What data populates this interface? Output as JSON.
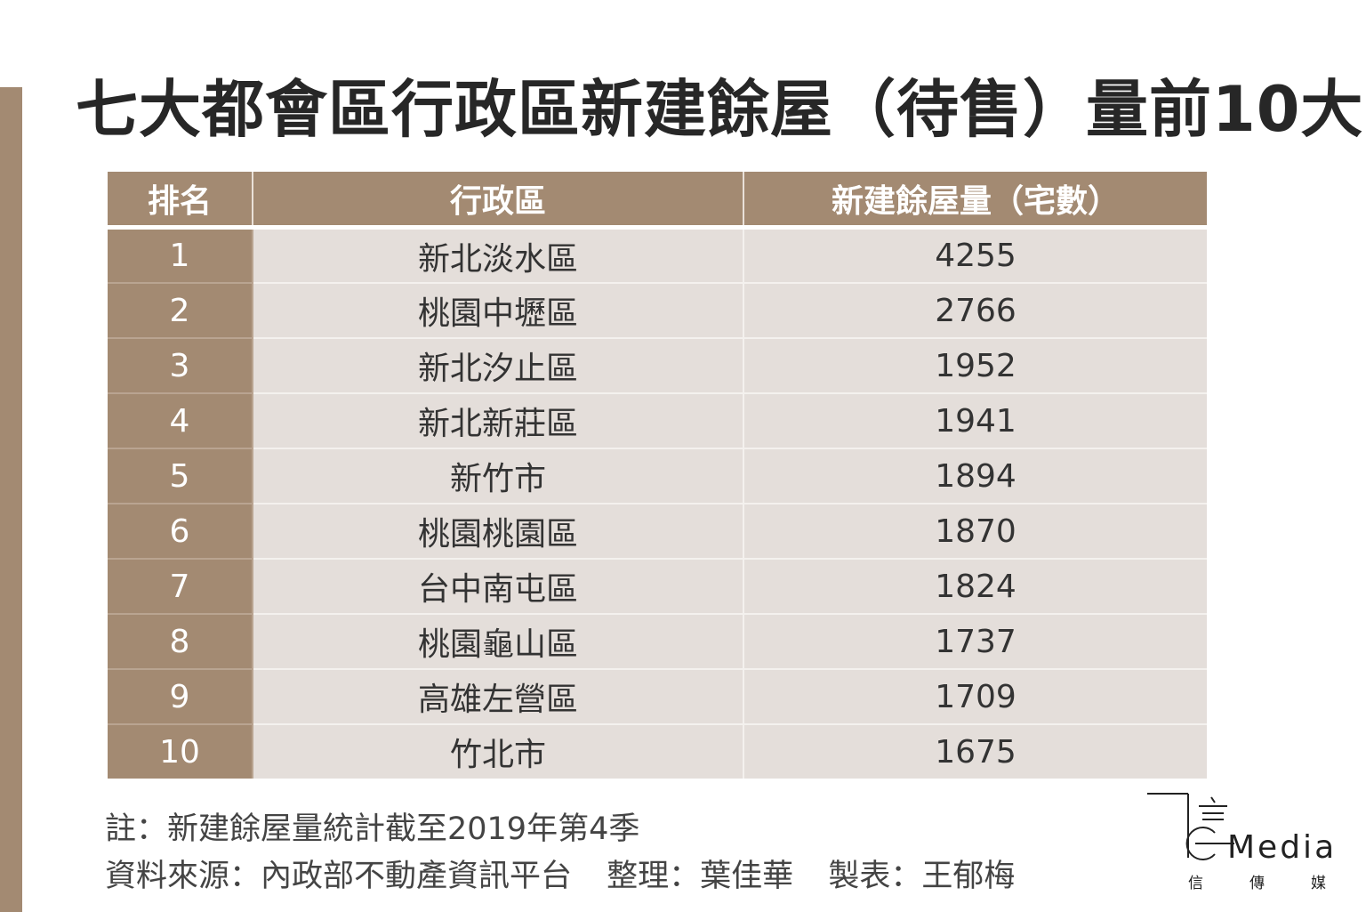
{
  "title": "七大都會區行政區新建餘屋（待售）量前10大",
  "table": {
    "headers": [
      "排名",
      "行政區",
      "新建餘屋量（宅數）"
    ],
    "rows": [
      {
        "rank": "1",
        "district": "新北淡水區",
        "count": "4255"
      },
      {
        "rank": "2",
        "district": "桃園中壢區",
        "count": "2766"
      },
      {
        "rank": "3",
        "district": "新北汐止區",
        "count": "1952"
      },
      {
        "rank": "4",
        "district": "新北新莊區",
        "count": "1941"
      },
      {
        "rank": "5",
        "district": "新竹市",
        "count": "1894"
      },
      {
        "rank": "6",
        "district": "桃園桃園區",
        "count": "1870"
      },
      {
        "rank": "7",
        "district": "台中南屯區",
        "count": "1824"
      },
      {
        "rank": "8",
        "district": "桃園龜山區",
        "count": "1737"
      },
      {
        "rank": "9",
        "district": "高雄左營區",
        "count": "1709"
      },
      {
        "rank": "10",
        "district": "竹北市",
        "count": "1675"
      }
    ]
  },
  "notes": {
    "note": "註：新建餘屋量統計截至2019年第4季",
    "source": "資料來源：內政部不動產資訊平台",
    "compiled": "整理：葉佳華",
    "made": "製表：王郁梅"
  },
  "logo": {
    "text": "Media",
    "sub": [
      "信",
      "傳",
      "媒"
    ]
  },
  "colors": {
    "accent": "#a38a72",
    "cell": "#e4deda",
    "title": "#272727"
  }
}
